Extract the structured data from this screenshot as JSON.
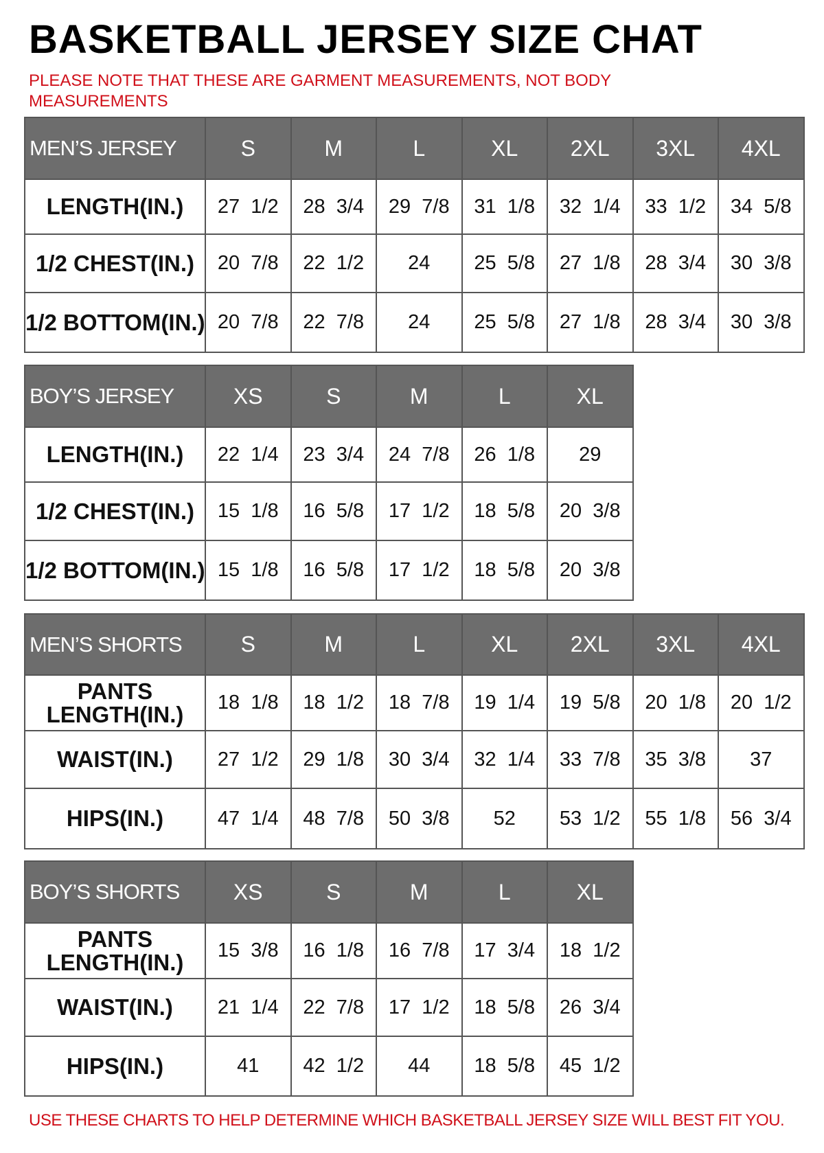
{
  "title": "BASKETBALL JERSEY SIZE CHAT",
  "note": "PLEASE NOTE THAT THESE ARE GARMENT MEASUREMENTS, NOT BODY MEASUREMENTS",
  "footer": "USE THESE CHARTS TO HELP DETERMINE WHICH BASKETBALL JERSEY SIZE WILL BEST FIT YOU.",
  "colors": {
    "header_bg": "#6d6d6d",
    "note_text": "#d0101a",
    "border": "#555555"
  },
  "tables": [
    {
      "name": "mens-jersey",
      "header": [
        "MEN’S JERSEY",
        "S",
        "M",
        "L",
        "XL",
        "2XL",
        "3XL",
        "4XL"
      ],
      "rows": [
        {
          "label": "LENGTH(IN.)",
          "values": [
            "27  1/2",
            "28  3/4",
            "29  7/8",
            "31  1/8",
            "32  1/4",
            "33  1/2",
            "34  5/8"
          ]
        },
        {
          "label": "1/2  CHEST(IN.)",
          "values": [
            "20  7/8",
            "22  1/2",
            "24",
            "25  5/8",
            "27  1/8",
            "28  3/4",
            "30  3/8"
          ]
        },
        {
          "label": "1/2  BOTTOM(IN.)",
          "values": [
            "20  7/8",
            "22  7/8",
            "24",
            "25  5/8",
            "27  1/8",
            "28  3/4",
            "30  3/8"
          ]
        }
      ]
    },
    {
      "name": "boys-jersey",
      "header": [
        "BOY’S JERSEY",
        "XS",
        "S",
        "M",
        "L",
        "XL"
      ],
      "rows": [
        {
          "label": "LENGTH(IN.)",
          "values": [
            "22  1/4",
            "23  3/4",
            "24  7/8",
            "26  1/8",
            "29"
          ]
        },
        {
          "label": "1/2  CHEST(IN.)",
          "values": [
            "15  1/8",
            "16  5/8",
            "17  1/2",
            "18  5/8",
            "20  3/8"
          ]
        },
        {
          "label": "1/2  BOTTOM(IN.)",
          "values": [
            "15  1/8",
            "16  5/8",
            "17  1/2",
            "18  5/8",
            "20  3/8"
          ]
        }
      ]
    },
    {
      "name": "mens-shorts",
      "header": [
        "MEN’S SHORTS",
        "S",
        "M",
        "L",
        "XL",
        "2XL",
        "3XL",
        "4XL"
      ],
      "rows": [
        {
          "label": "PANTS LENGTH(IN.)",
          "values": [
            "18  1/8",
            "18  1/2",
            "18  7/8",
            "19  1/4",
            "19  5/8",
            "20  1/8",
            "20  1/2"
          ]
        },
        {
          "label": "WAIST(IN.)",
          "values": [
            "27  1/2",
            "29  1/8",
            "30  3/4",
            "32  1/4",
            "33  7/8",
            "35  3/8",
            "37"
          ]
        },
        {
          "label": "HIPS(IN.)",
          "values": [
            "47  1/4",
            "48  7/8",
            "50  3/8",
            "52",
            "53  1/2",
            "55  1/8",
            "56  3/4"
          ]
        }
      ]
    },
    {
      "name": "boys-shorts",
      "header": [
        "BOY’S SHORTS",
        "XS",
        "S",
        "M",
        "L",
        "XL"
      ],
      "rows": [
        {
          "label": "PANTS LENGTH(IN.)",
          "values": [
            "15  3/8",
            "16  1/8",
            "16  7/8",
            "17  3/4",
            "18  1/2"
          ]
        },
        {
          "label": "WAIST(IN.)",
          "values": [
            "21  1/4",
            "22  7/8",
            "17  1/2",
            "18  5/8",
            "26  3/4"
          ]
        },
        {
          "label": "HIPS(IN.)",
          "values": [
            "41",
            "42  1/2",
            "44",
            "18  5/8",
            "45  1/2"
          ]
        }
      ]
    }
  ]
}
